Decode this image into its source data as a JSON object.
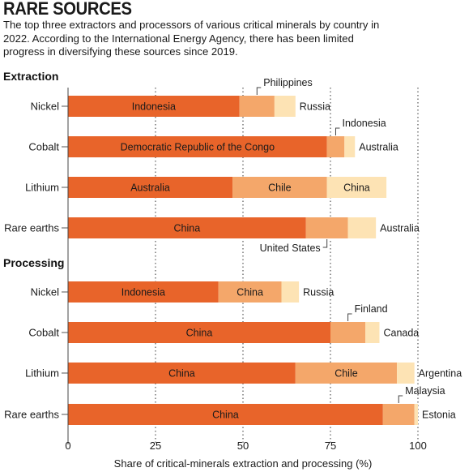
{
  "title": "RARE SOURCES",
  "subtitle": "The top three extractors and processors of various critical minerals by country in 2022. According to the International Energy Agency, there has been limited progress in diversifying these sources since 2019.",
  "colors": {
    "first": "#e8642a",
    "second": "#f4a76a",
    "third": "#fde3b4",
    "axis": "#555555"
  },
  "chart_data": {
    "type": "bar",
    "orientation": "horizontal",
    "stacked": true,
    "xlabel": "Share of critical-minerals extraction and processing (%)",
    "xlim": [
      0,
      100
    ],
    "xticks": [
      0,
      25,
      50,
      75,
      100
    ],
    "grid": "dotted vertical lines at 25, 50, 75, 100",
    "groups": [
      {
        "name": "Extraction",
        "rows": [
          {
            "category": "Nickel",
            "segments": [
              {
                "country": "Indonesia",
                "value": 49
              },
              {
                "country": "Philippines",
                "value": 10
              },
              {
                "country": "Russia",
                "value": 6
              }
            ]
          },
          {
            "category": "Cobalt",
            "segments": [
              {
                "country": "Democratic Republic of the Congo",
                "value": 74
              },
              {
                "country": "Indonesia",
                "value": 5
              },
              {
                "country": "Australia",
                "value": 3
              }
            ]
          },
          {
            "category": "Lithium",
            "segments": [
              {
                "country": "Australia",
                "value": 47
              },
              {
                "country": "Chile",
                "value": 27
              },
              {
                "country": "China",
                "value": 17
              }
            ]
          },
          {
            "category": "Rare earths",
            "segments": [
              {
                "country": "China",
                "value": 68
              },
              {
                "country": "United States",
                "value": 12
              },
              {
                "country": "Australia",
                "value": 8
              }
            ]
          }
        ]
      },
      {
        "name": "Processing",
        "rows": [
          {
            "category": "Nickel",
            "segments": [
              {
                "country": "Indonesia",
                "value": 43
              },
              {
                "country": "China",
                "value": 18
              },
              {
                "country": "Russia",
                "value": 5
              }
            ]
          },
          {
            "category": "Cobalt",
            "segments": [
              {
                "country": "China",
                "value": 75
              },
              {
                "country": "Finland",
                "value": 10
              },
              {
                "country": "Canada",
                "value": 4
              }
            ]
          },
          {
            "category": "Lithium",
            "segments": [
              {
                "country": "China",
                "value": 65
              },
              {
                "country": "Chile",
                "value": 29
              },
              {
                "country": "Argentina",
                "value": 5
              }
            ]
          },
          {
            "category": "Rare earths",
            "segments": [
              {
                "country": "China",
                "value": 90
              },
              {
                "country": "Malaysia",
                "value": 9
              },
              {
                "country": "Estonia",
                "value": 1
              }
            ]
          }
        ]
      }
    ]
  }
}
